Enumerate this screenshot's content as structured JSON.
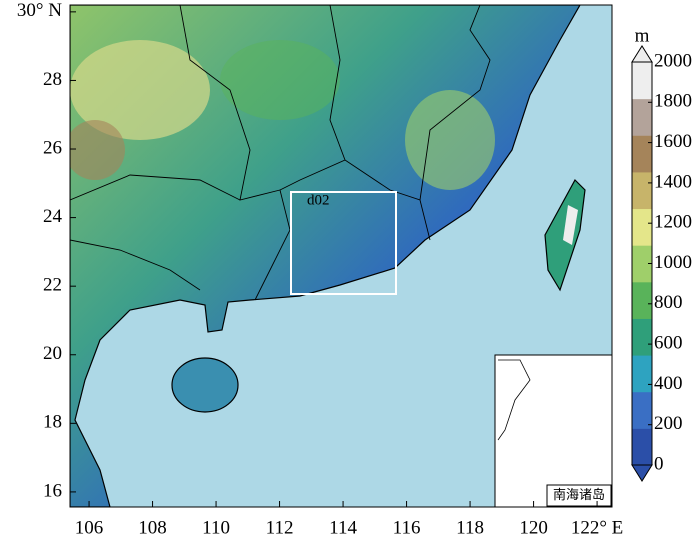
{
  "map": {
    "xlim": [
      105.4,
      122.47
    ],
    "ylim": [
      15.56,
      30.2
    ],
    "xticks": [
      106,
      108,
      110,
      112,
      114,
      116,
      118,
      120,
      {
        "value": 122,
        "label": "122° E"
      }
    ],
    "yticks": [
      16,
      18,
      20,
      22,
      24,
      26,
      28,
      {
        "value": 30,
        "label": "30° N"
      }
    ],
    "domain_label": "d02",
    "inset_label": "南海诸岛"
  },
  "colorbar": {
    "unit": "m",
    "range": [
      0,
      2000
    ],
    "ticks": [
      0,
      200,
      400,
      600,
      800,
      1000,
      1200,
      1400,
      1600,
      1800,
      2000
    ],
    "colors": [
      "#2b4fa8",
      "#3a6fc4",
      "#2ea3c0",
      "#2f9f7a",
      "#59b35a",
      "#9fcf6a",
      "#e4e68a",
      "#c7b46a",
      "#a5845a",
      "#b3a39a",
      "#eeeeee"
    ]
  }
}
